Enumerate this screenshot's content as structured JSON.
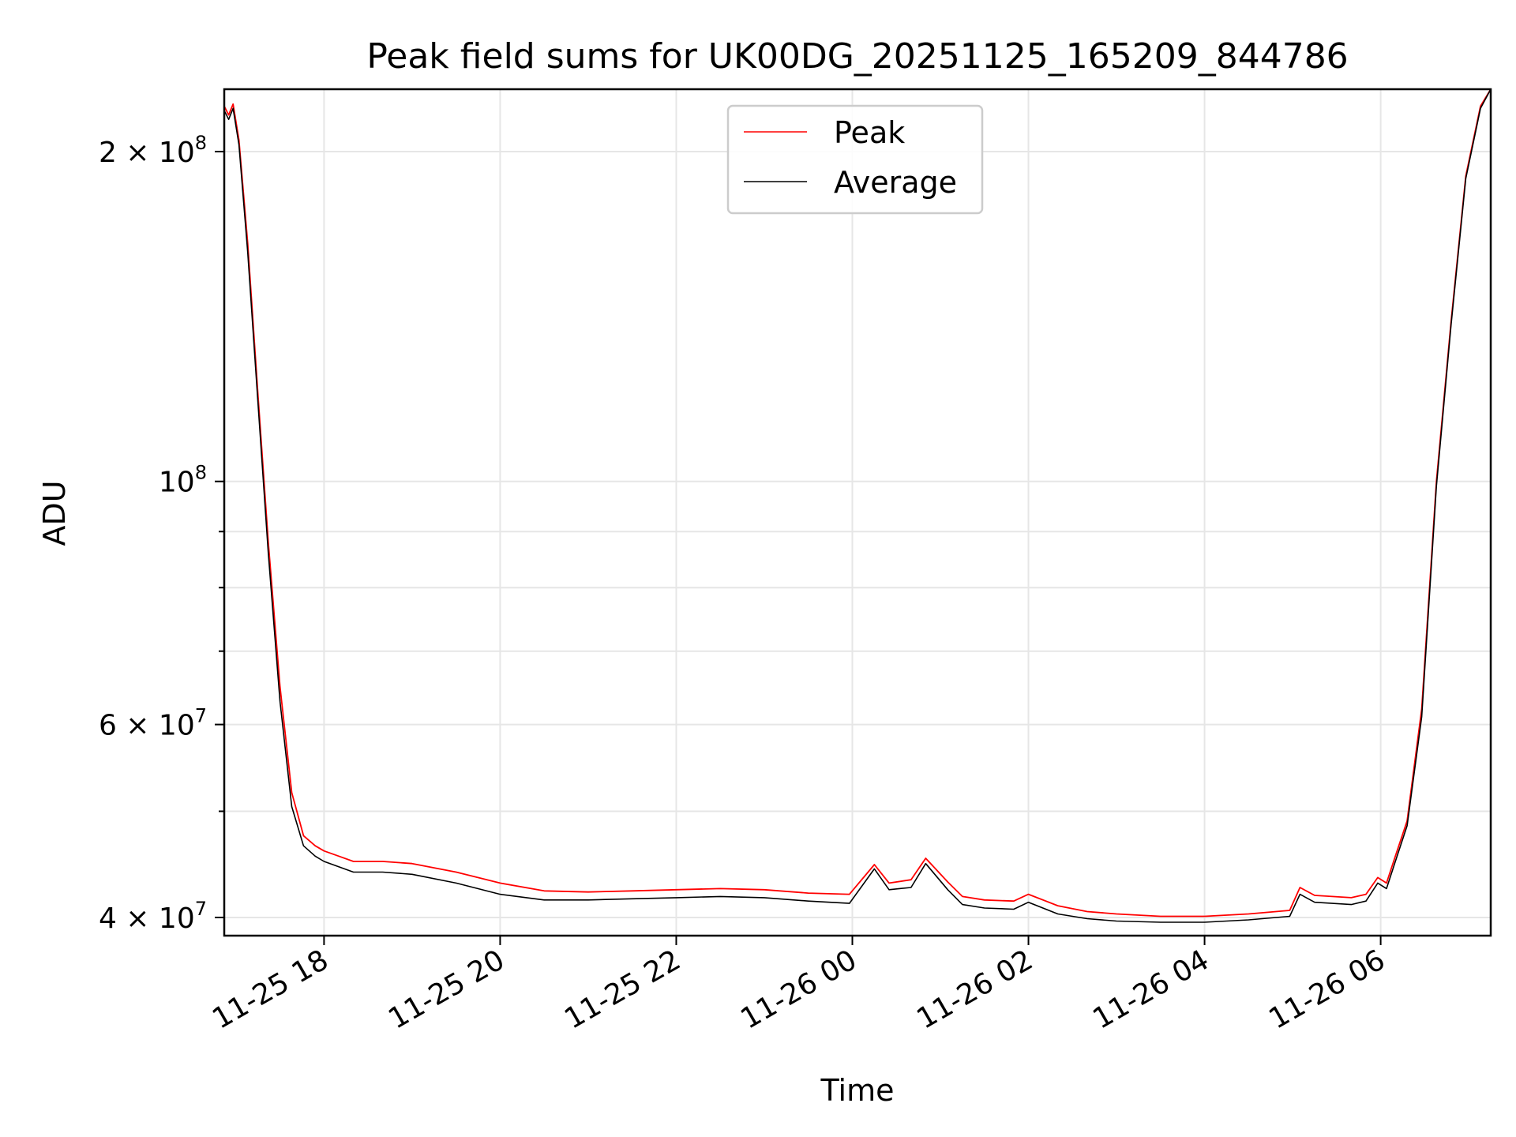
{
  "chart_data": {
    "type": "line",
    "title": "Peak field sums for UK00DG_20251125_165209_844786",
    "xlabel": "Time",
    "ylabel": "ADU",
    "yscale": "log",
    "ylim": [
      38500000,
      228000000
    ],
    "xlim": [
      "2025-11-25 16:52",
      "2025-11-26 07:15"
    ],
    "grid": true,
    "legend_position": "upper center",
    "x_ticks": [
      {
        "value": "2025-11-25 18:00",
        "label": "11-25 18"
      },
      {
        "value": "2025-11-25 20:00",
        "label": "11-25 20"
      },
      {
        "value": "2025-11-25 22:00",
        "label": "11-25 22"
      },
      {
        "value": "2025-11-26 00:00",
        "label": "11-26 00"
      },
      {
        "value": "2025-11-26 02:00",
        "label": "11-26 02"
      },
      {
        "value": "2025-11-26 04:00",
        "label": "11-26 04"
      },
      {
        "value": "2025-11-26 06:00",
        "label": "11-26 06"
      }
    ],
    "y_ticks": [
      {
        "value": 40000000,
        "base": "4 × 10",
        "exp": "7"
      },
      {
        "value": 60000000,
        "base": "6 × 10",
        "exp": "7"
      },
      {
        "value": 100000000,
        "base": "10",
        "exp": "8"
      },
      {
        "value": 200000000,
        "base": "2 × 10",
        "exp": "8"
      }
    ],
    "y_minor_ticks": [
      50000000,
      70000000,
      80000000,
      90000000
    ],
    "series": [
      {
        "name": "Peak",
        "color": "#ff0000",
        "x": [
          "2025-11-25 16:52",
          "2025-11-25 16:55",
          "2025-11-25 16:58",
          "2025-11-25 17:02",
          "2025-11-25 17:08",
          "2025-11-25 17:15",
          "2025-11-25 17:22",
          "2025-11-25 17:30",
          "2025-11-25 17:38",
          "2025-11-25 17:46",
          "2025-11-25 17:54",
          "2025-11-25 18:00",
          "2025-11-25 18:10",
          "2025-11-25 18:20",
          "2025-11-25 18:40",
          "2025-11-25 19:00",
          "2025-11-25 19:30",
          "2025-11-25 20:00",
          "2025-11-25 20:30",
          "2025-11-25 21:00",
          "2025-11-25 21:30",
          "2025-11-25 22:00",
          "2025-11-25 22:30",
          "2025-11-25 23:00",
          "2025-11-25 23:30",
          "2025-11-25 23:58",
          "2025-11-26 00:15",
          "2025-11-26 00:25",
          "2025-11-26 00:40",
          "2025-11-26 00:50",
          "2025-11-26 01:05",
          "2025-11-26 01:15",
          "2025-11-26 01:30",
          "2025-11-26 01:50",
          "2025-11-26 02:00",
          "2025-11-26 02:20",
          "2025-11-26 02:40",
          "2025-11-26 03:00",
          "2025-11-26 03:30",
          "2025-11-26 04:00",
          "2025-11-26 04:30",
          "2025-11-26 04:58",
          "2025-11-26 05:05",
          "2025-11-26 05:15",
          "2025-11-26 05:40",
          "2025-11-26 05:50",
          "2025-11-26 05:58",
          "2025-11-26 06:04",
          "2025-11-26 06:10",
          "2025-11-26 06:18",
          "2025-11-26 06:28",
          "2025-11-26 06:38",
          "2025-11-26 06:48",
          "2025-11-26 06:58",
          "2025-11-26 07:08",
          "2025-11-26 07:15"
        ],
        "values": [
          220000000,
          216000000,
          221000000,
          205000000,
          165000000,
          120000000,
          88000000,
          65000000,
          52000000,
          47500000,
          46500000,
          46000000,
          45500000,
          45000000,
          45000000,
          44800000,
          44000000,
          43000000,
          42300000,
          42200000,
          42300000,
          42400000,
          42500000,
          42400000,
          42100000,
          42000000,
          44700000,
          43000000,
          43300000,
          45300000,
          43100000,
          41800000,
          41500000,
          41400000,
          42000000,
          41000000,
          40500000,
          40300000,
          40100000,
          40100000,
          40300000,
          40600000,
          42600000,
          41900000,
          41700000,
          42000000,
          43500000,
          43000000,
          45500000,
          49000000,
          62000000,
          100000000,
          140000000,
          190000000,
          220000000,
          228000000
        ]
      },
      {
        "name": "Average",
        "color": "#000000",
        "x": [
          "2025-11-25 16:52",
          "2025-11-25 16:55",
          "2025-11-25 16:58",
          "2025-11-25 17:02",
          "2025-11-25 17:08",
          "2025-11-25 17:15",
          "2025-11-25 17:22",
          "2025-11-25 17:30",
          "2025-11-25 17:38",
          "2025-11-25 17:46",
          "2025-11-25 17:54",
          "2025-11-25 18:00",
          "2025-11-25 18:10",
          "2025-11-25 18:20",
          "2025-11-25 18:40",
          "2025-11-25 19:00",
          "2025-11-25 19:30",
          "2025-11-25 20:00",
          "2025-11-25 20:30",
          "2025-11-25 21:00",
          "2025-11-25 21:30",
          "2025-11-25 22:00",
          "2025-11-25 22:30",
          "2025-11-25 23:00",
          "2025-11-25 23:30",
          "2025-11-25 23:58",
          "2025-11-26 00:15",
          "2025-11-26 00:25",
          "2025-11-26 00:40",
          "2025-11-26 00:50",
          "2025-11-26 01:05",
          "2025-11-26 01:15",
          "2025-11-26 01:30",
          "2025-11-26 01:50",
          "2025-11-26 02:00",
          "2025-11-26 02:20",
          "2025-11-26 02:40",
          "2025-11-26 03:00",
          "2025-11-26 03:30",
          "2025-11-26 04:00",
          "2025-11-26 04:30",
          "2025-11-26 04:58",
          "2025-11-26 05:05",
          "2025-11-26 05:15",
          "2025-11-26 05:40",
          "2025-11-26 05:50",
          "2025-11-26 05:58",
          "2025-11-26 06:04",
          "2025-11-26 06:10",
          "2025-11-26 06:18",
          "2025-11-26 06:28",
          "2025-11-26 06:38",
          "2025-11-26 06:48",
          "2025-11-26 06:58",
          "2025-11-26 07:08",
          "2025-11-26 07:15"
        ],
        "values": [
          218000000,
          214000000,
          219000000,
          203000000,
          162000000,
          118000000,
          86000000,
          63000000,
          50500000,
          46500000,
          45500000,
          45000000,
          44500000,
          44000000,
          44000000,
          43800000,
          43000000,
          42000000,
          41500000,
          41500000,
          41600000,
          41700000,
          41800000,
          41700000,
          41400000,
          41200000,
          44300000,
          42400000,
          42600000,
          44800000,
          42400000,
          41100000,
          40800000,
          40700000,
          41300000,
          40300000,
          39900000,
          39700000,
          39600000,
          39600000,
          39800000,
          40100000,
          42000000,
          41300000,
          41100000,
          41400000,
          43000000,
          42500000,
          45000000,
          48500000,
          61000000,
          99000000,
          139000000,
          189000000,
          219000000,
          228000000
        ]
      }
    ]
  }
}
